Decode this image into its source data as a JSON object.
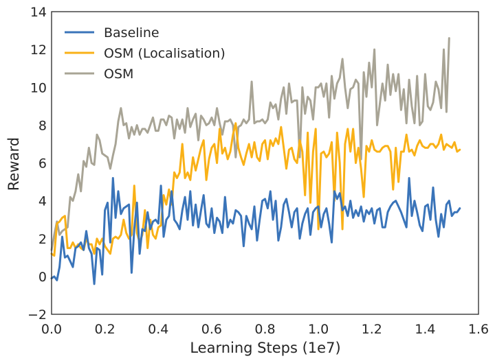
{
  "chart_data": {
    "type": "line",
    "title": "",
    "xlabel": "Learning Steps (1e7)",
    "ylabel": "Reward",
    "xlim": [
      0.0,
      1.6
    ],
    "ylim": [
      -2,
      14
    ],
    "xticks": [
      "0.0",
      "0.2",
      "0.4",
      "0.6",
      "0.8",
      "1.0",
      "1.2",
      "1.4",
      "1.6"
    ],
    "yticks": [
      "−2",
      "0",
      "2",
      "4",
      "6",
      "8",
      "10",
      "12",
      "14"
    ],
    "xtick_values": [
      0.0,
      0.2,
      0.4,
      0.6,
      0.8,
      1.0,
      1.2,
      1.4,
      1.6
    ],
    "ytick_values": [
      -2,
      0,
      2,
      4,
      6,
      8,
      10,
      12,
      14
    ],
    "grid": false,
    "legend_position": "top-left",
    "x_start": 0.0,
    "x_step": 0.01,
    "series": [
      {
        "name": "Baseline",
        "color": "#3a74b9",
        "values": [
          -0.1,
          0.0,
          -0.2,
          0.5,
          2.1,
          1.0,
          1.1,
          0.8,
          0.5,
          1.5,
          1.6,
          1.8,
          1.4,
          2.4,
          1.5,
          1.2,
          -0.4,
          1.5,
          1.4,
          0.1,
          3.5,
          3.9,
          1.8,
          5.2,
          3.1,
          4.5,
          3.3,
          3.6,
          3.7,
          3.8,
          0.2,
          2.5,
          3.9,
          1.2,
          2.5,
          2.4,
          3.4,
          2.5,
          2.9,
          3.0,
          2.8,
          4.8,
          2.1,
          3.0,
          3.2,
          4.5,
          3.0,
          2.8,
          2.5,
          3.5,
          4.2,
          3.0,
          4.5,
          2.7,
          3.8,
          2.6,
          3.5,
          4.3,
          2.8,
          2.6,
          3.6,
          2.3,
          3.1,
          2.9,
          2.3,
          4.2,
          2.6,
          3.0,
          2.8,
          3.5,
          3.4,
          3.2,
          1.6,
          3.2,
          2.8,
          2.5,
          3.7,
          1.9,
          3.0,
          4.0,
          4.1,
          3.6,
          4.5,
          3.0,
          4.0,
          1.9,
          2.6,
          3.8,
          4.1,
          3.4,
          2.6,
          3.4,
          3.6,
          2.0,
          2.8,
          3.3,
          3.6,
          2.2,
          3.4,
          3.6,
          3.7,
          2.6,
          3.3,
          3.6,
          2.8,
          1.8,
          4.5,
          4.1,
          4.4,
          3.5,
          3.7,
          3.2,
          4.0,
          3.1,
          3.5,
          3.2,
          3.7,
          2.9,
          3.5,
          3.3,
          3.6,
          2.8,
          3.5,
          3.6,
          2.6,
          2.6,
          3.4,
          3.7,
          3.9,
          4.0,
          3.7,
          3.4,
          3.0,
          2.6,
          5.2,
          3.2,
          4.0,
          3.4,
          2.7,
          2.4,
          3.7,
          3.8,
          3.0,
          4.7,
          3.0,
          2.1,
          3.3,
          2.6,
          3.8,
          4.0,
          3.2,
          3.4,
          3.4,
          3.6
        ]
      },
      {
        "name": "OSM (Localisation)",
        "color": "#f9b117",
        "values": [
          1.2,
          1.1,
          2.8,
          2.9,
          3.1,
          3.2,
          1.5,
          1.5,
          1.8,
          1.5,
          1.7,
          1.5,
          1.4,
          2.0,
          1.7,
          1.7,
          1.2,
          2.0,
          1.7,
          2.0,
          1.6,
          1.4,
          1.2,
          2.0,
          2.1,
          2.0,
          2.2,
          3.0,
          2.3,
          2.0,
          2.2,
          4.8,
          2.3,
          1.8,
          2.2,
          3.5,
          1.5,
          3.0,
          2.2,
          2.0,
          2.6,
          2.7,
          4.3,
          3.8,
          4.6,
          3.8,
          5.5,
          5.2,
          5.5,
          7.0,
          5.2,
          5.5,
          5.1,
          6.3,
          5.6,
          6.2,
          6.8,
          7.2,
          5.1,
          6.2,
          6.8,
          7.0,
          6.0,
          7.8,
          6.5,
          6.8,
          6.2,
          6.6,
          7.5,
          8.1,
          6.8,
          6.3,
          5.9,
          6.5,
          7.0,
          6.3,
          7.1,
          6.3,
          6.1,
          7.0,
          7.2,
          6.2,
          7.2,
          6.9,
          7.3,
          7.0,
          7.9,
          6.8,
          5.7,
          6.7,
          6.8,
          6.2,
          6.0,
          7.2,
          6.6,
          4.3,
          7.6,
          3.9,
          6.6,
          7.8,
          2.5,
          6.5,
          6.6,
          6.3,
          6.5,
          7.1,
          4.0,
          7.6,
          6.0,
          2.5,
          7.0,
          7.8,
          6.6,
          7.8,
          6.0,
          6.8,
          5.7,
          4.2,
          6.9,
          6.6,
          7.2,
          6.7,
          6.6,
          6.6,
          6.8,
          6.9,
          6.9,
          6.6,
          4.6,
          6.8,
          5.0,
          6.6,
          6.6,
          7.5,
          6.6,
          6.7,
          6.4,
          6.9,
          7.2,
          6.9,
          6.8,
          6.8,
          7.0,
          7.0,
          6.8,
          7.0,
          7.5,
          6.7,
          7.0,
          6.9,
          6.8,
          7.1,
          6.6,
          6.7
        ]
      },
      {
        "name": "OSM",
        "color": "#a8a495",
        "values": [
          1.4,
          2.2,
          2.9,
          2.2,
          2.4,
          2.5,
          2.6,
          4.2,
          4.0,
          4.5,
          5.4,
          4.5,
          6.1,
          5.8,
          6.8,
          6.0,
          5.9,
          7.5,
          7.2,
          6.5,
          6.4,
          6.3,
          5.7,
          6.4,
          7.0,
          8.2,
          8.9,
          8.0,
          8.1,
          7.3,
          7.9,
          7.5,
          8.0,
          7.5,
          7.8,
          7.8,
          7.6,
          8.0,
          8.4,
          7.7,
          7.7,
          8.3,
          8.3,
          8.0,
          8.5,
          8.4,
          7.3,
          8.3,
          7.8,
          8.3,
          7.6,
          8.9,
          7.9,
          8.3,
          8.6,
          7.2,
          8.5,
          8.3,
          8.0,
          8.1,
          8.4,
          8.0,
          8.9,
          8.1,
          7.5,
          8.2,
          8.2,
          8.3,
          8.0,
          6.3,
          7.9,
          8.0,
          8.3,
          8.1,
          8.3,
          10.3,
          8.1,
          8.2,
          8.2,
          8.3,
          8.1,
          8.3,
          9.2,
          8.9,
          9.1,
          8.3,
          9.4,
          10.0,
          8.6,
          10.2,
          9.2,
          9.3,
          9.3,
          6.3,
          10.0,
          8.6,
          9.5,
          9.3,
          8.3,
          10.0,
          10.0,
          10.2,
          9.5,
          10.2,
          8.4,
          10.6,
          9.4,
          10.2,
          10.5,
          11.5,
          10.0,
          8.9,
          9.9,
          10.0,
          10.4,
          10.2,
          6.2,
          10.8,
          9.5,
          11.3,
          10.0,
          12.0,
          8.0,
          9.1,
          10.2,
          9.3,
          11.2,
          9.6,
          10.7,
          9.8,
          10.7,
          8.8,
          9.9,
          8.1,
          10.4,
          9.0,
          8.1,
          10.6,
          8.0,
          8.2,
          10.7,
          9.0,
          8.8,
          9.2,
          10.3,
          9.9,
          8.9,
          12.0,
          8.7,
          12.6
        ]
      }
    ]
  }
}
